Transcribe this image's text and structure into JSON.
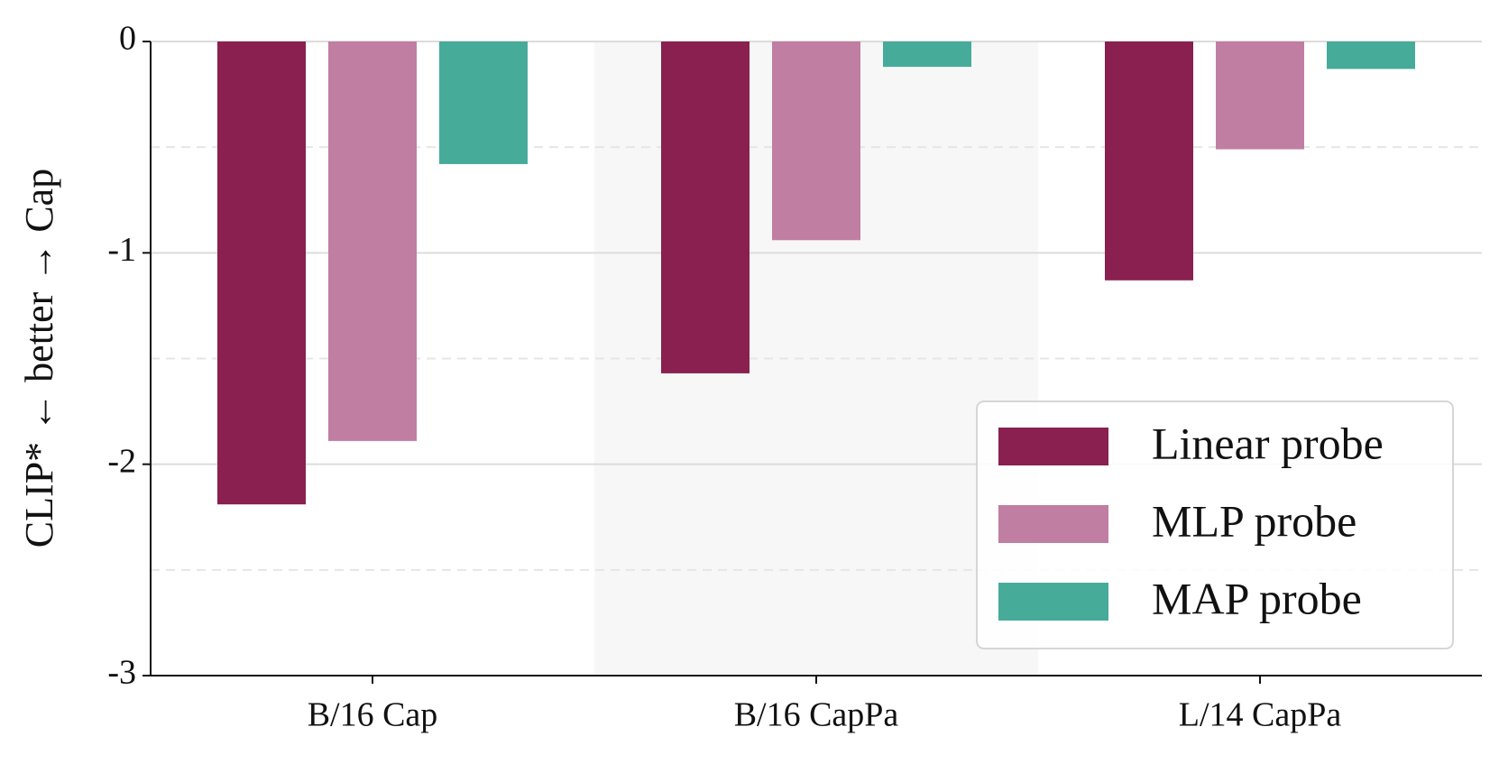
{
  "chart_data": {
    "type": "bar",
    "ylabel": "CLIP* ← better → Cap",
    "categories": [
      "B/16 Cap",
      "B/16 CapPa",
      "L/14 CapPa"
    ],
    "series": [
      {
        "name": "Linear probe",
        "color": "#89204f",
        "values": [
          -2.19,
          -1.57,
          -1.13
        ]
      },
      {
        "name": "MLP probe",
        "color": "#c07ea2",
        "values": [
          -1.89,
          -0.94,
          -0.51
        ]
      },
      {
        "name": "MAP probe",
        "color": "#47ab9a",
        "values": [
          -0.58,
          -0.12,
          -0.13
        ]
      }
    ],
    "ylim": [
      -3,
      0
    ],
    "yticks": [
      0,
      -1,
      -2,
      -3
    ],
    "minor_yticks": [
      -0.5,
      -1.5,
      -2.5
    ],
    "grid": true,
    "legend": "lower right"
  }
}
